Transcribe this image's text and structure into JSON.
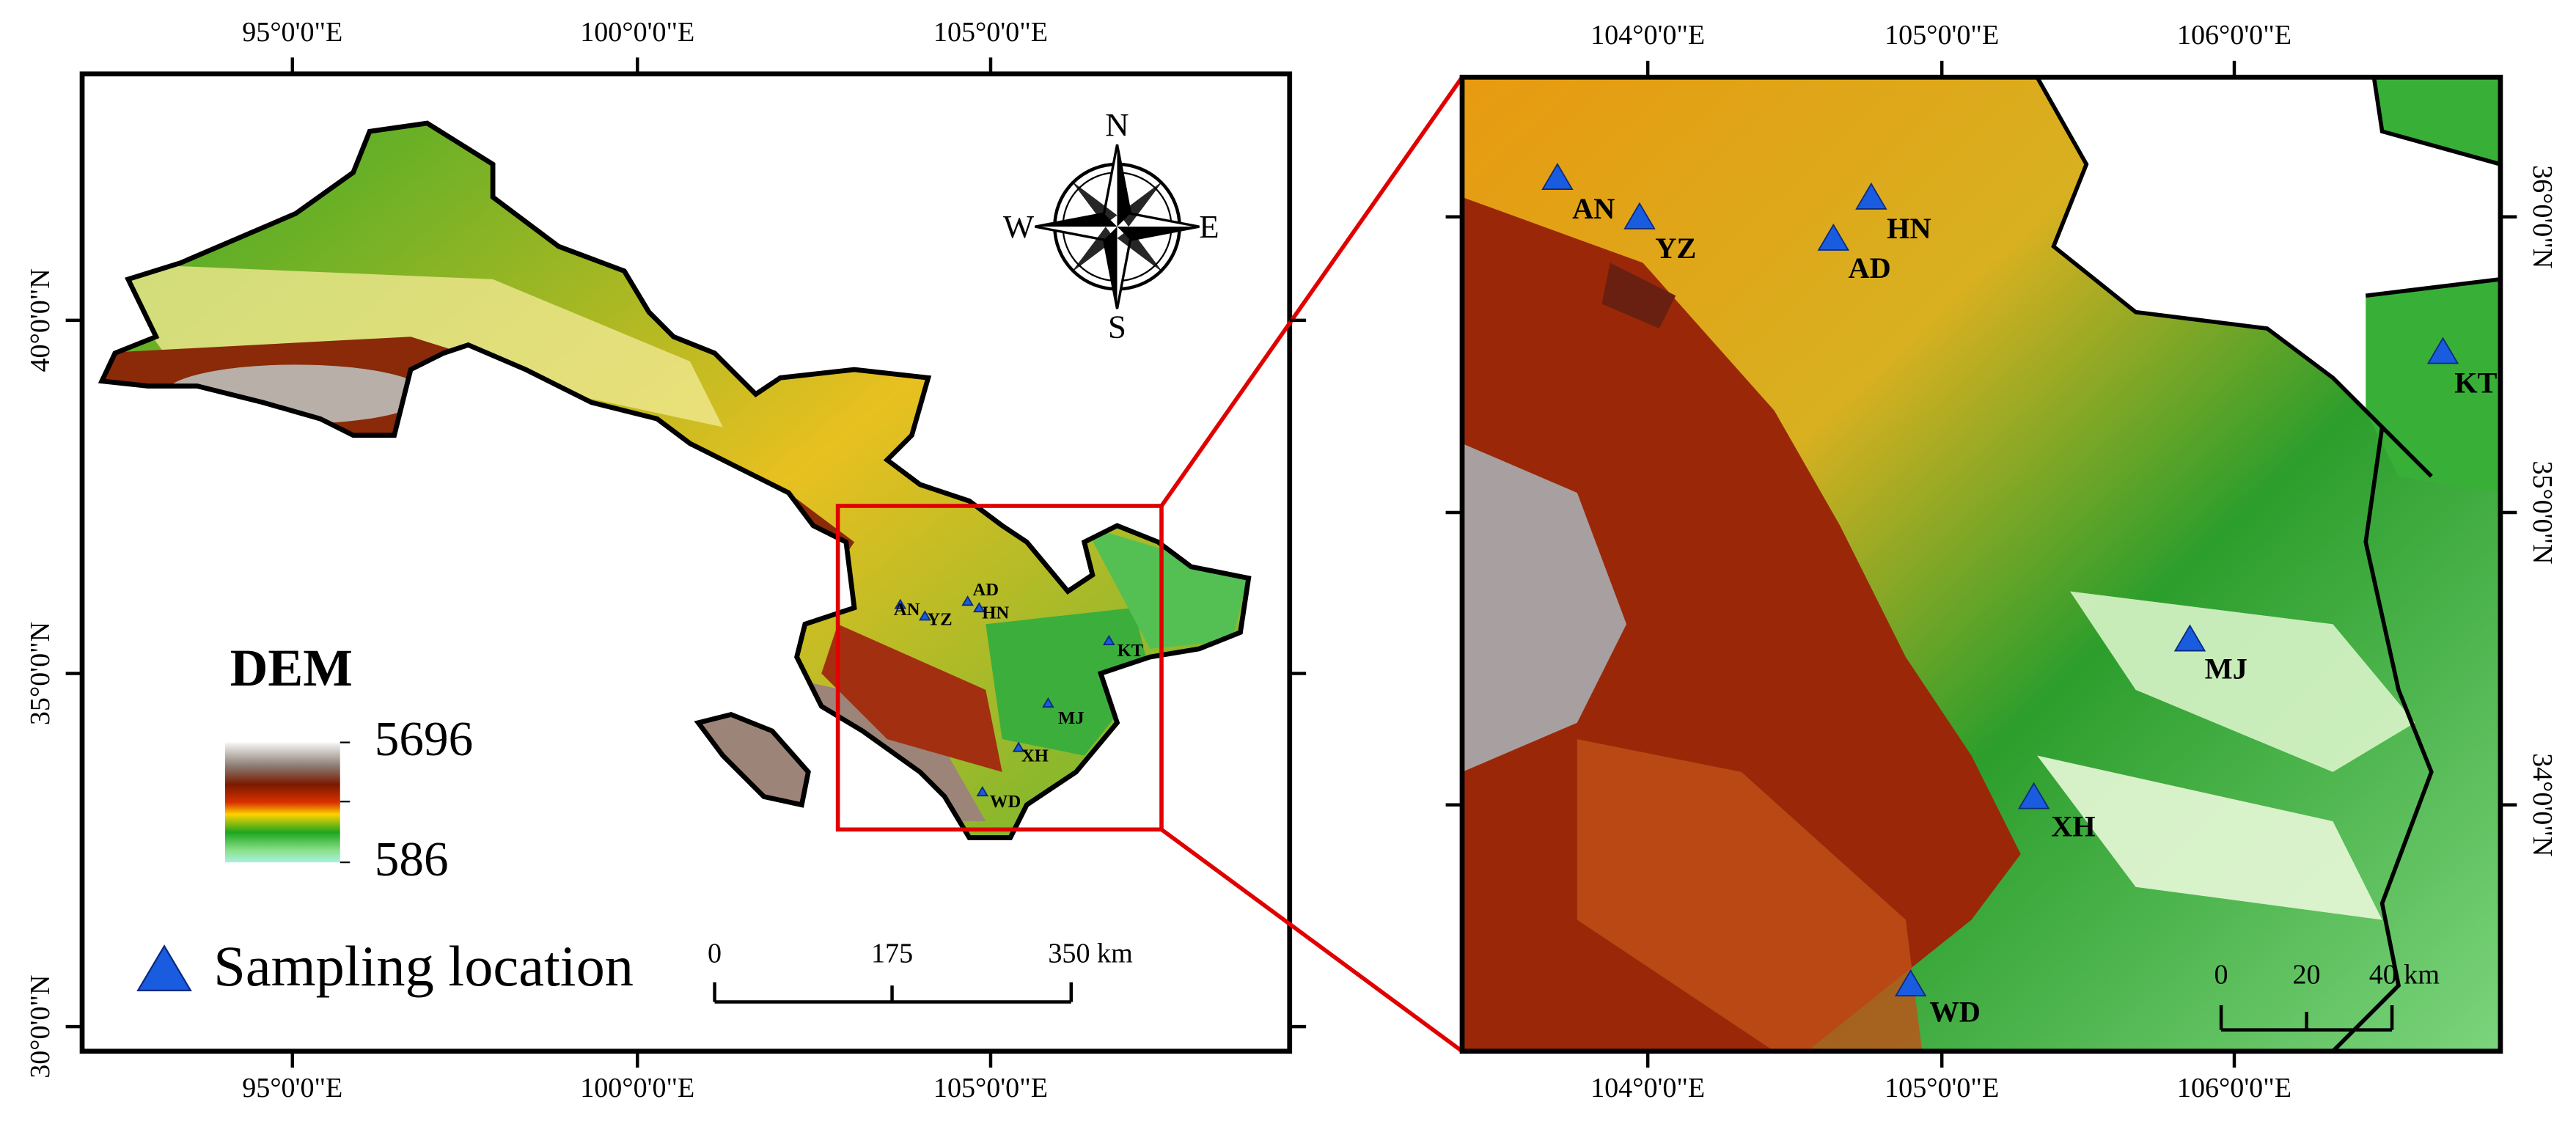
{
  "left_map": {
    "x_labels": [
      "95°0'0\"E",
      "100°0'0\"E",
      "105°0'0\"E"
    ],
    "y_labels": [
      "40°0'0\"N",
      "35°0'0\"N",
      "30°0'0\"N"
    ],
    "compass": {
      "n": "N",
      "e": "E",
      "s": "S",
      "w": "W"
    },
    "legend": {
      "title": "DEM",
      "max": 5696,
      "min": 586,
      "sampling": "Sampling location"
    },
    "scale_bar": [
      "0",
      "175",
      "350 km"
    ],
    "sites": [
      "AN",
      "YZ",
      "AD",
      "HN",
      "KT",
      "MJ",
      "XH",
      "WD"
    ]
  },
  "right_map": {
    "x_labels": [
      "104°0'0\"E",
      "105°0'0\"E",
      "106°0'0\"E"
    ],
    "y_labels": [
      "36°0'0\"N",
      "35°0'0\"N",
      "34°0'0\"N"
    ],
    "scale_bar": [
      "0",
      "20",
      "40 km"
    ],
    "sites": [
      "AN",
      "YZ",
      "AD",
      "HN",
      "KT",
      "MJ",
      "XH",
      "WD"
    ]
  }
}
